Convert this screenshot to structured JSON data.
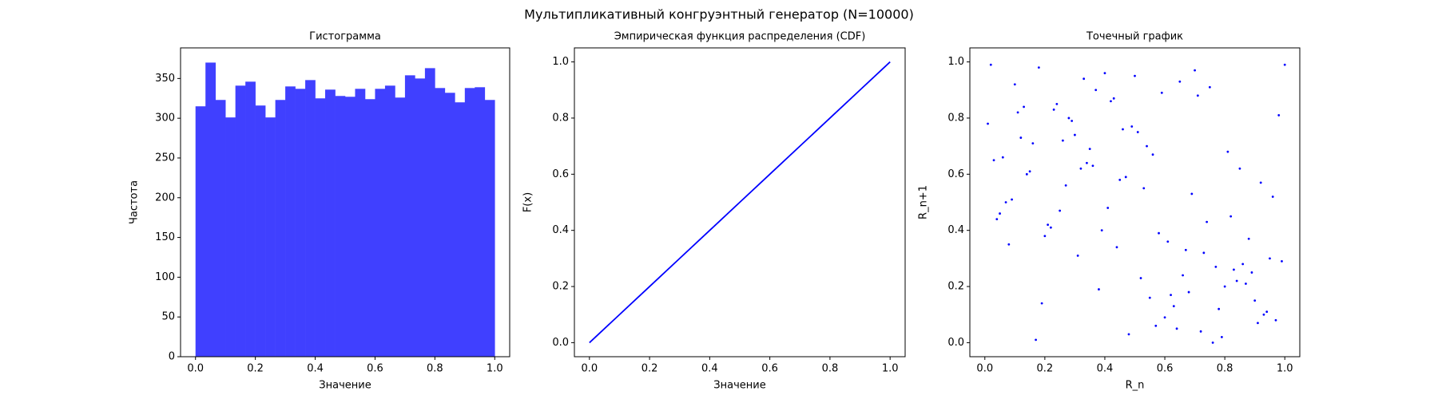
{
  "figure_title": "Мультипликативный конгруэнтный генератор (N=10000)",
  "chart_data": [
    {
      "type": "histogram",
      "title": "Гистограмма",
      "xlabel": "Значение",
      "ylabel": "Частота",
      "color": "#4040ff",
      "bins": [
        0,
        0.0333,
        0.0667,
        0.1,
        0.1333,
        0.1667,
        0.2,
        0.2333,
        0.2667,
        0.3,
        0.3333,
        0.3667,
        0.4,
        0.4333,
        0.4667,
        0.5,
        0.5333,
        0.5667,
        0.6,
        0.6333,
        0.6667,
        0.7,
        0.7333,
        0.7667,
        0.8,
        0.8333,
        0.8667,
        0.9,
        0.9333,
        0.9667,
        1
      ],
      "values": [
        315,
        370,
        323,
        301,
        341,
        346,
        316,
        301,
        323,
        340,
        337,
        348,
        325,
        336,
        328,
        327,
        337,
        324,
        337,
        341,
        326,
        354,
        350,
        363,
        338,
        332,
        320,
        338,
        339,
        323
      ],
      "xlim": [
        -0.05,
        1.05
      ],
      "ylim": [
        0,
        388.5
      ],
      "xticks": [
        {
          "value": 0,
          "label": "0.0"
        },
        {
          "value": 0.2,
          "label": "0.2"
        },
        {
          "value": 0.4,
          "label": "0.4"
        },
        {
          "value": 0.6,
          "label": "0.6"
        },
        {
          "value": 0.8,
          "label": "0.8"
        },
        {
          "value": 1,
          "label": "1.0"
        }
      ],
      "yticks": [
        0,
        50,
        100,
        150,
        200,
        250,
        300,
        350
      ]
    },
    {
      "type": "line",
      "title": "Эмпирическая функция распределения (CDF)",
      "xlabel": "Значение",
      "ylabel": "F(x)",
      "color": "#0000ff",
      "x": [
        0,
        0.1,
        0.2,
        0.3,
        0.4,
        0.5,
        0.6,
        0.7,
        0.8,
        0.9,
        1
      ],
      "values": [
        0,
        0.1,
        0.2,
        0.3,
        0.4,
        0.5,
        0.6,
        0.7,
        0.8,
        0.9,
        1
      ],
      "xlim": [
        -0.05,
        1.05
      ],
      "ylim": [
        -0.05,
        1.05
      ],
      "xticks": [
        {
          "value": 0,
          "label": "0.0"
        },
        {
          "value": 0.2,
          "label": "0.2"
        },
        {
          "value": 0.4,
          "label": "0.4"
        },
        {
          "value": 0.6,
          "label": "0.6"
        },
        {
          "value": 0.8,
          "label": "0.8"
        },
        {
          "value": 1,
          "label": "1.0"
        }
      ],
      "yticks": [
        {
          "value": 0,
          "label": "0.0"
        },
        {
          "value": 0.2,
          "label": "0.2"
        },
        {
          "value": 0.4,
          "label": "0.4"
        },
        {
          "value": 0.6,
          "label": "0.6"
        },
        {
          "value": 0.8,
          "label": "0.8"
        },
        {
          "value": 1,
          "label": "1.0"
        }
      ]
    },
    {
      "type": "scatter",
      "title": "Точечный график",
      "xlabel": "R_n",
      "ylabel": "R_n+1",
      "color": "#0000ff",
      "x": [
        0.12,
        0.87,
        0.45,
        0.33,
        0.91,
        0.05,
        0.67,
        0.24,
        0.78,
        0.56,
        0.02,
        0.39,
        0.83,
        0.15,
        0.71,
        0.48,
        0.96,
        0.29,
        0.62,
        0.08,
        0.54,
        0.19,
        0.75,
        0.41,
        0.99,
        0.36,
        0.64,
        0.11,
        0.88,
        0.27,
        0.52,
        0.7,
        0.04,
        0.93,
        0.46,
        0.31,
        0.81,
        0.17,
        0.59,
        0.69,
        0.22,
        0.85,
        0.38,
        0.13,
        0.77,
        0.5,
        0.97,
        0.26,
        0.61,
        0.07,
        0.43,
        0.9,
        0.34,
        0.73,
        0.18,
        0.57,
        0.82,
        0.01,
        0.66,
        0.47,
        0.94,
        0.23,
        0.58,
        0.35,
        0.79,
        0.1,
        0.53,
        0.86,
        0.3,
        0.68,
        0.14,
        0.44,
        0.98,
        0.25,
        0.63,
        0.4,
        0.84,
        0.06,
        0.72,
        0.51,
        0.2,
        0.92,
        0.37,
        0.6,
        0.16,
        0.89,
        0.42,
        0.74,
        0.03,
        0.55,
        0.28,
        0.95,
        0.65,
        0.09,
        0.8,
        0.49,
        0.21,
        0.76,
        0.32,
        1.0
      ],
      "values": [
        0.73,
        0.21,
        0.58,
        0.94,
        0.07,
        0.46,
        0.33,
        0.85,
        0.12,
        0.67,
        0.99,
        0.4,
        0.26,
        0.61,
        0.88,
        0.03,
        0.52,
        0.79,
        0.17,
        0.35,
        0.7,
        0.14,
        0.91,
        0.48,
        0.29,
        0.63,
        0.05,
        0.82,
        0.37,
        0.56,
        0.23,
        0.97,
        0.44,
        0.1,
        0.76,
        0.31,
        0.68,
        0.01,
        0.89,
        0.53,
        0.41,
        0.62,
        0.19,
        0.84,
        0.27,
        0.95,
        0.08,
        0.72,
        0.36,
        0.5,
        0.87,
        0.15,
        0.64,
        0.32,
        0.98,
        0.06,
        0.45,
        0.78,
        0.24,
        0.59,
        0.11,
        0.83,
        0.39,
        0.69,
        0.02,
        0.92,
        0.55,
        0.28,
        0.74,
        0.18,
        0.6,
        0.34,
        0.81,
        0.47,
        0.13,
        0.96,
        0.22,
        0.66,
        0.04,
        0.75,
        0.38,
        0.57,
        0.9,
        0.09,
        0.71,
        0.25,
        0.86,
        0.43,
        0.65,
        0.16,
        0.8,
        0.3,
        0.93,
        0.51,
        0.2,
        0.77,
        0.42,
        0.0,
        0.62,
        0.99
      ],
      "xlim": [
        -0.05,
        1.05
      ],
      "ylim": [
        -0.05,
        1.05
      ],
      "xticks": [
        {
          "value": 0,
          "label": "0.0"
        },
        {
          "value": 0.2,
          "label": "0.2"
        },
        {
          "value": 0.4,
          "label": "0.4"
        },
        {
          "value": 0.6,
          "label": "0.6"
        },
        {
          "value": 0.8,
          "label": "0.8"
        },
        {
          "value": 1,
          "label": "1.0"
        }
      ],
      "yticks": [
        {
          "value": 0,
          "label": "0.0"
        },
        {
          "value": 0.2,
          "label": "0.2"
        },
        {
          "value": 0.4,
          "label": "0.4"
        },
        {
          "value": 0.6,
          "label": "0.6"
        },
        {
          "value": 0.8,
          "label": "0.8"
        },
        {
          "value": 1,
          "label": "1.0"
        }
      ]
    }
  ]
}
